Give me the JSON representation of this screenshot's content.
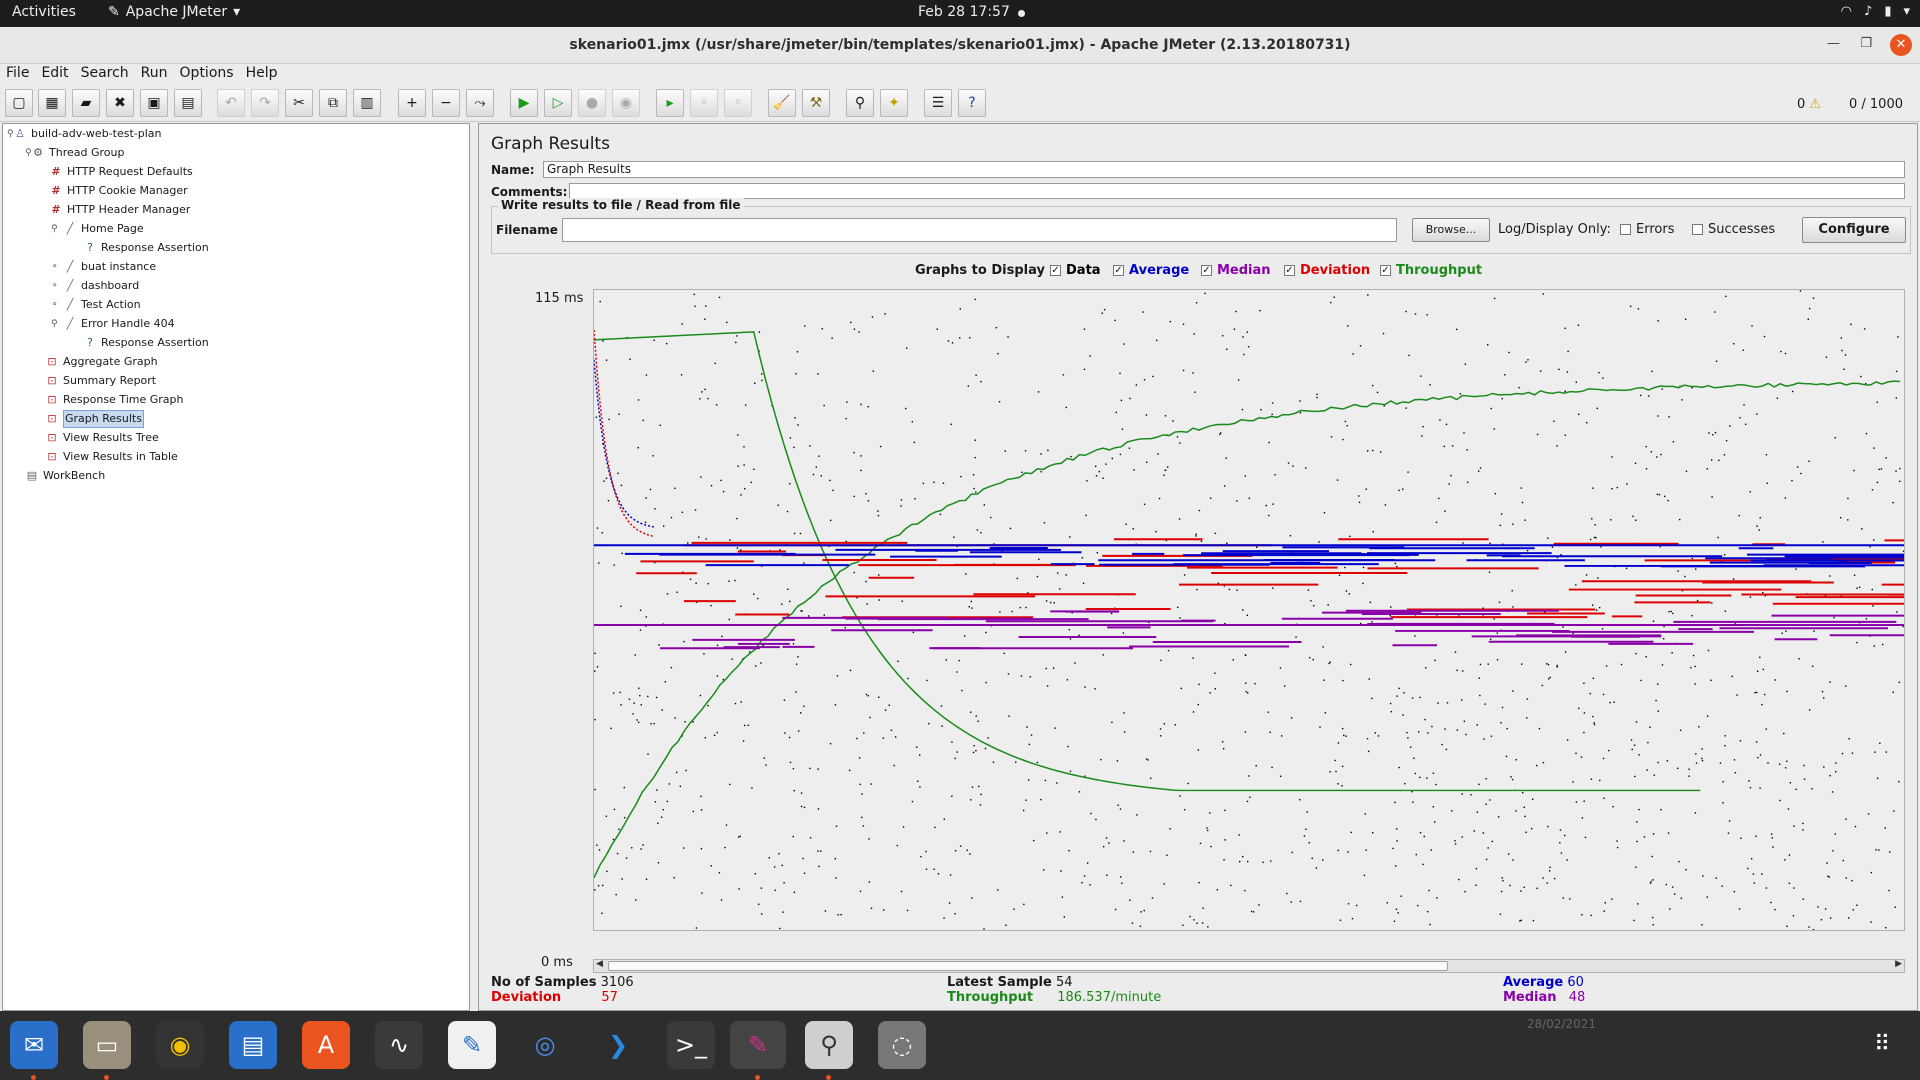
{
  "topbar": {
    "activities": "Activities",
    "app_name": "Apache JMeter",
    "clock": "Feb 28  17:57"
  },
  "window": {
    "title": "skenario01.jmx (/usr/share/jmeter/bin/templates/skenario01.jmx) - Apache JMeter (2.13.20180731)"
  },
  "menu": [
    "File",
    "Edit",
    "Search",
    "Run",
    "Options",
    "Help"
  ],
  "toolbar": {
    "warning_count": "0",
    "threads": "0 / 1000"
  },
  "tree": [
    {
      "label": "build-adv-web-test-plan",
      "icon": "test-plan-icon",
      "level": 0
    },
    {
      "label": "Thread Group",
      "icon": "thread-group-icon",
      "level": 1
    },
    {
      "label": "HTTP Request Defaults",
      "icon": "config-element-icon",
      "level": 2
    },
    {
      "label": "HTTP Cookie Manager",
      "icon": "config-element-icon",
      "level": 2
    },
    {
      "label": "HTTP Header Manager",
      "icon": "config-element-icon",
      "level": 2
    },
    {
      "label": "Home Page",
      "icon": "sampler-icon",
      "level": 2
    },
    {
      "label": "Response Assertion",
      "icon": "assertion-icon",
      "level": 3
    },
    {
      "label": "buat instance",
      "icon": "sampler-icon",
      "level": 2
    },
    {
      "label": "dashboard",
      "icon": "sampler-icon",
      "level": 2
    },
    {
      "label": "Test Action",
      "icon": "sampler-icon",
      "level": 2
    },
    {
      "label": "Error Handle 404",
      "icon": "sampler-icon",
      "level": 2
    },
    {
      "label": "Response Assertion",
      "icon": "assertion-icon",
      "level": 3
    },
    {
      "label": "Aggregate Graph",
      "icon": "listener-icon",
      "level": 1
    },
    {
      "label": "Summary Report",
      "icon": "listener-icon",
      "level": 1
    },
    {
      "label": "Response Time Graph",
      "icon": "listener-icon",
      "level": 1
    },
    {
      "label": "Graph Results",
      "icon": "listener-icon",
      "level": 1,
      "selected": true
    },
    {
      "label": "View Results Tree",
      "icon": "listener-icon",
      "level": 1
    },
    {
      "label": "View Results in Table",
      "icon": "listener-icon",
      "level": 1
    },
    {
      "label": "WorkBench",
      "icon": "workbench-icon",
      "level": 0
    }
  ],
  "panel": {
    "title": "Graph Results",
    "name_label": "Name:",
    "name_value": "Graph Results",
    "comments_label": "Comments:",
    "file_legend": "Write results to file / Read from file",
    "filename_label": "Filename",
    "browse_label": "Browse...",
    "log_only_label": "Log/Display Only:",
    "errors_label": "Errors",
    "successes_label": "Successes",
    "configure_label": "Configure",
    "graphs_label": "Graphs to Display",
    "graphs": [
      {
        "label": "Data",
        "color": "#000000",
        "checked": true
      },
      {
        "label": "Average",
        "color": "#0000cc",
        "checked": true
      },
      {
        "label": "Median",
        "color": "#8a00a8",
        "checked": true
      },
      {
        "label": "Deviation",
        "color": "#dd0000",
        "checked": true
      },
      {
        "label": "Throughput",
        "color": "#1a8a1a",
        "checked": true
      }
    ]
  },
  "chart_data": {
    "type": "line",
    "y_max_label": "115  ms",
    "y_min_label": "0  ms",
    "ylim": [
      0,
      115
    ],
    "series_colors": {
      "data": "#000000",
      "average": "#0000cc",
      "median": "#8a00a8",
      "deviation": "#dd0000",
      "throughput": "#1a8a1a"
    }
  },
  "stats": {
    "samples_label": "No of Samples",
    "samples_value": "3106",
    "latest_label": "Latest Sample",
    "latest_value": "54",
    "average_label": "Average",
    "average_value": "60",
    "deviation_label": "Deviation",
    "deviation_value": "57",
    "throughput_label": "Throughput",
    "throughput_value": "186.537/minute",
    "median_label": "Median",
    "median_value": "48"
  },
  "dock": {
    "date": "28/02/2021"
  }
}
